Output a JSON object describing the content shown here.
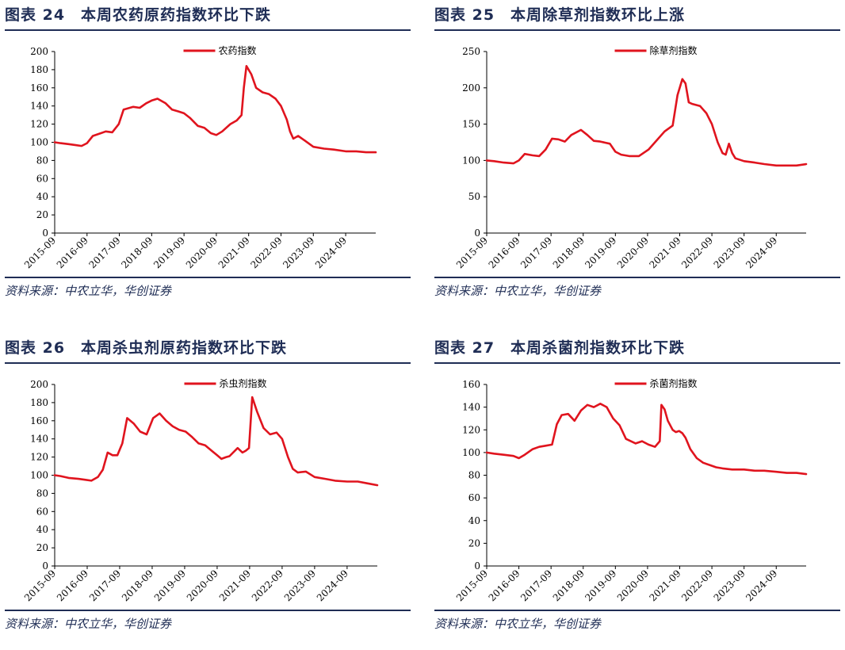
{
  "line_color": "#e0141e",
  "header_color": "#1f2d55",
  "panels": [
    {
      "title": "图表 24　本周农药原药指数环比下跌",
      "source": "资料来源：中农立华，华创证券",
      "chart_data": {
        "type": "line",
        "legend": "农药指数",
        "ylim": [
          0,
          200
        ],
        "yticks": [
          0,
          20,
          40,
          60,
          80,
          100,
          120,
          140,
          160,
          180,
          200
        ],
        "xlim": [
          2015.67,
          2025.6
        ],
        "xticks": [
          "2015-09",
          "2016-09",
          "2017-09",
          "2018-09",
          "2019-09",
          "2020-09",
          "2021-09",
          "2022-09",
          "2023-09",
          "2024-09"
        ],
        "x": [
          2015.67,
          2015.85,
          2016.1,
          2016.3,
          2016.5,
          2016.67,
          2016.85,
          2017.1,
          2017.25,
          2017.45,
          2017.65,
          2017.8,
          2018.1,
          2018.3,
          2018.5,
          2018.67,
          2018.85,
          2019.1,
          2019.3,
          2019.5,
          2019.67,
          2019.85,
          2020.1,
          2020.3,
          2020.5,
          2020.67,
          2020.85,
          2021.1,
          2021.3,
          2021.45,
          2021.52,
          2021.6,
          2021.75,
          2021.9,
          2022.1,
          2022.3,
          2022.5,
          2022.67,
          2022.85,
          2022.95,
          2023.05,
          2023.2,
          2023.4,
          2023.67,
          2024.0,
          2024.3,
          2024.67,
          2025.0,
          2025.3,
          2025.6
        ],
        "values": [
          100,
          99,
          98,
          97,
          96,
          99,
          107,
          110,
          112,
          111,
          120,
          136,
          139,
          138,
          143,
          146,
          148,
          143,
          136,
          134,
          132,
          127,
          118,
          116,
          110,
          108,
          112,
          120,
          124,
          130,
          160,
          184,
          175,
          160,
          155,
          153,
          148,
          140,
          125,
          112,
          104,
          107,
          102,
          95,
          93,
          92,
          90,
          90,
          89,
          89
        ]
      }
    },
    {
      "title": "图表 25　本周除草剂指数环比上涨",
      "source": "资料来源：中农立华，华创证券",
      "chart_data": {
        "type": "line",
        "legend": "除草剂指数",
        "ylim": [
          0,
          250
        ],
        "yticks": [
          0,
          50,
          100,
          150,
          200,
          250
        ],
        "xlim": [
          2015.67,
          2025.6
        ],
        "xticks": [
          "2015-09",
          "2016-09",
          "2017-09",
          "2018-09",
          "2019-09",
          "2020-09",
          "2021-09",
          "2022-09",
          "2023-09",
          "2024-09"
        ],
        "x": [
          2015.67,
          2015.9,
          2016.2,
          2016.5,
          2016.67,
          2016.85,
          2017.1,
          2017.3,
          2017.5,
          2017.7,
          2017.9,
          2018.1,
          2018.3,
          2018.6,
          2018.8,
          2019.0,
          2019.2,
          2019.5,
          2019.67,
          2019.85,
          2020.1,
          2020.4,
          2020.7,
          2020.9,
          2021.2,
          2021.45,
          2021.6,
          2021.75,
          2021.85,
          2021.95,
          2022.05,
          2022.3,
          2022.5,
          2022.67,
          2022.85,
          2023.0,
          2023.1,
          2023.2,
          2023.3,
          2023.4,
          2023.67,
          2024.0,
          2024.3,
          2024.67,
          2025.0,
          2025.3,
          2025.6
        ],
        "values": [
          100,
          99,
          97,
          96,
          100,
          109,
          107,
          106,
          115,
          130,
          129,
          126,
          135,
          142,
          135,
          127,
          126,
          123,
          112,
          108,
          106,
          106,
          115,
          125,
          140,
          148,
          190,
          212,
          206,
          180,
          178,
          175,
          165,
          150,
          125,
          110,
          108,
          123,
          110,
          103,
          99,
          97,
          95,
          93,
          93,
          93,
          95
        ]
      }
    },
    {
      "title": "图表 26　本周杀虫剂原药指数环比下跌",
      "source": "资料来源：中农立华，华创证券",
      "chart_data": {
        "type": "line",
        "legend": "杀虫剂指数",
        "ylim": [
          0,
          200
        ],
        "yticks": [
          0,
          20,
          40,
          60,
          80,
          100,
          120,
          140,
          160,
          180,
          200
        ],
        "xlim": [
          2015.67,
          2025.6
        ],
        "xticks": [
          "2015-09",
          "2016-09",
          "2017-09",
          "2018-09",
          "2019-09",
          "2020-09",
          "2021-09",
          "2022-09",
          "2023-09",
          "2024-09"
        ],
        "x": [
          2015.67,
          2015.85,
          2016.1,
          2016.4,
          2016.6,
          2016.8,
          2017.0,
          2017.15,
          2017.3,
          2017.45,
          2017.6,
          2017.75,
          2017.9,
          2018.1,
          2018.3,
          2018.5,
          2018.7,
          2018.9,
          2019.1,
          2019.3,
          2019.5,
          2019.7,
          2019.9,
          2020.1,
          2020.3,
          2020.5,
          2020.67,
          2020.8,
          2020.95,
          2021.05,
          2021.3,
          2021.45,
          2021.55,
          2021.65,
          2021.75,
          2021.9,
          2022.1,
          2022.3,
          2022.5,
          2022.67,
          2022.85,
          2023.0,
          2023.15,
          2023.4,
          2023.67,
          2024.0,
          2024.3,
          2024.67,
          2025.0,
          2025.3,
          2025.6
        ],
        "values": [
          100,
          99,
          97,
          96,
          95,
          94,
          98,
          106,
          125,
          122,
          122,
          135,
          163,
          157,
          148,
          145,
          163,
          168,
          160,
          154,
          150,
          148,
          142,
          135,
          133,
          127,
          122,
          118,
          120,
          121,
          130,
          125,
          127,
          130,
          186,
          170,
          152,
          145,
          147,
          140,
          120,
          107,
          103,
          104,
          98,
          96,
          94,
          93,
          93,
          91,
          89
        ]
      }
    },
    {
      "title": "图表 27　本周杀菌剂指数环比下跌",
      "source": "资料来源：中农立华，华创证券",
      "chart_data": {
        "type": "line",
        "legend": "杀菌剂指数",
        "ylim": [
          0,
          160
        ],
        "yticks": [
          0,
          20,
          40,
          60,
          80,
          100,
          120,
          140,
          160
        ],
        "xlim": [
          2015.67,
          2025.6
        ],
        "xticks": [
          "2015-09",
          "2016-09",
          "2017-09",
          "2018-09",
          "2019-09",
          "2020-09",
          "2021-09",
          "2022-09",
          "2023-09",
          "2024-09"
        ],
        "x": [
          2015.67,
          2015.9,
          2016.2,
          2016.5,
          2016.67,
          2016.85,
          2017.1,
          2017.3,
          2017.5,
          2017.7,
          2017.85,
          2018.0,
          2018.2,
          2018.4,
          2018.6,
          2018.8,
          2019.0,
          2019.2,
          2019.4,
          2019.5,
          2019.6,
          2019.8,
          2020.0,
          2020.3,
          2020.5,
          2020.7,
          2020.9,
          2021.05,
          2021.1,
          2021.2,
          2021.3,
          2021.45,
          2021.55,
          2021.65,
          2021.75,
          2021.85,
          2022.0,
          2022.2,
          2022.4,
          2022.6,
          2022.8,
          2023.0,
          2023.3,
          2023.67,
          2024.0,
          2024.3,
          2024.67,
          2025.0,
          2025.3,
          2025.6
        ],
        "values": [
          100,
          99,
          98,
          97,
          95,
          98,
          103,
          105,
          106,
          107,
          125,
          133,
          134,
          128,
          137,
          142,
          140,
          143,
          140,
          135,
          130,
          124,
          112,
          108,
          110,
          107,
          105,
          110,
          142,
          138,
          128,
          120,
          118,
          119,
          117,
          113,
          103,
          95,
          91,
          89,
          87,
          86,
          85,
          85,
          84,
          84,
          83,
          82,
          82,
          81
        ]
      }
    }
  ]
}
